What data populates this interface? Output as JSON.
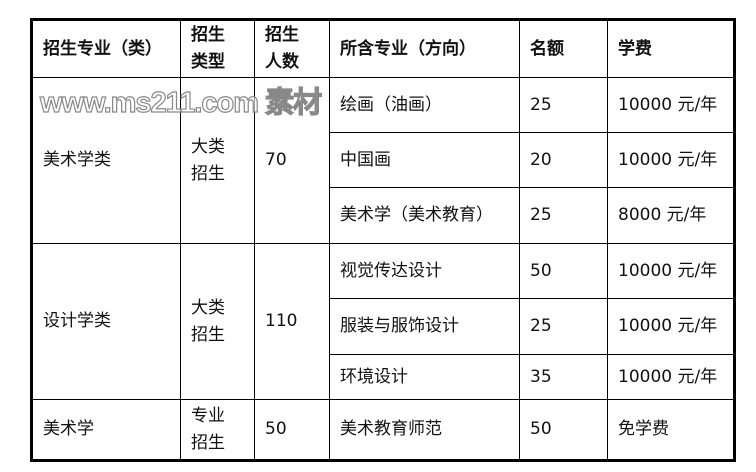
{
  "headers": [
    "招生专业（类）",
    "招生\n类型",
    "招生\n人数",
    "所含专业（方向）",
    "名额",
    "学费"
  ],
  "header_lines": {
    "type": [
      "招生",
      "类型"
    ],
    "count": [
      "招生",
      "人数"
    ]
  },
  "groups": [
    {
      "category": "美术学类",
      "type": [
        "大类",
        "招生"
      ],
      "count": "70",
      "majors": [
        {
          "name": "绘画（油画）",
          "quota": "25",
          "fee": "10000 元/年"
        },
        {
          "name": "中国画",
          "quota": "20",
          "fee": "10000 元/年"
        },
        {
          "name": "美术学（美术教育）",
          "quota": "25",
          "fee": "8000 元/年"
        }
      ]
    },
    {
      "category": "设计学类",
      "type": [
        "大类",
        "招生"
      ],
      "count": "110",
      "majors": [
        {
          "name": "视觉传达设计",
          "quota": "50",
          "fee": "10000 元/年"
        },
        {
          "name": "服装与服饰设计",
          "quota": "25",
          "fee": "10000 元/年"
        },
        {
          "name": "环境设计",
          "quota": "35",
          "fee": "10000 元/年"
        }
      ]
    },
    {
      "category": "美术学",
      "type": [
        "专业",
        "招生"
      ],
      "count": "50",
      "majors": [
        {
          "name": "美术教育师范",
          "quota": "50",
          "fee": "免学费"
        }
      ]
    }
  ],
  "watermark": "www.ms211.com 素材"
}
